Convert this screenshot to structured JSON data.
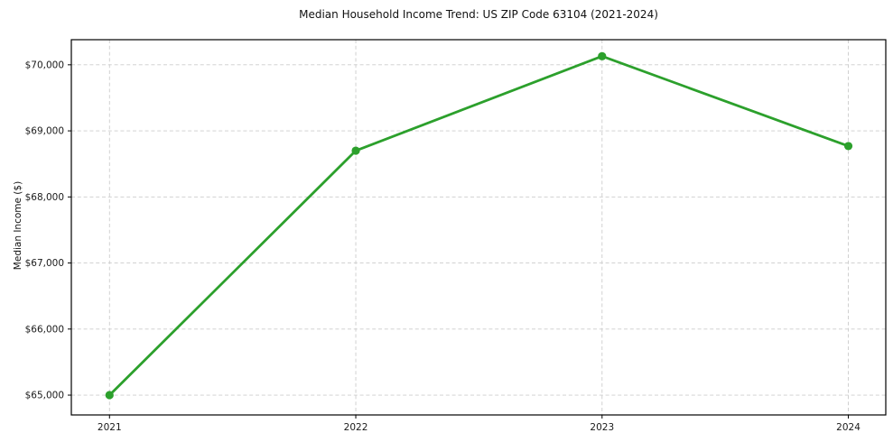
{
  "figure": {
    "title": "Median Household Income Trend: US ZIP Code 63104 (2021-2024)",
    "ylabel": "Median Income ($)"
  },
  "chart_data": {
    "type": "line",
    "title": "Median Household Income Trend: US ZIP Code 63104 (2021-2024)",
    "xlabel": "",
    "ylabel": "Median Income ($)",
    "x": [
      2021,
      2022,
      2023,
      2024
    ],
    "x_tick_labels": [
      "2021",
      "2022",
      "2023",
      "2024"
    ],
    "values": [
      65000,
      68700,
      70130,
      68770
    ],
    "y_ticks": [
      65000,
      66000,
      67000,
      68000,
      69000,
      70000
    ],
    "y_tick_labels": [
      "$65,000",
      "$66,000",
      "$67,000",
      "$68,000",
      "$69,000",
      "$70,000"
    ],
    "xlim": [
      2020.845,
      2024.152
    ],
    "ylim": [
      64700,
      70380
    ],
    "grid": "dashed-both-axes",
    "legend": false,
    "style": {
      "line_color": "#2ca02c",
      "marker": "circle",
      "marker_radius": 4.6,
      "line_width": 2.8,
      "grid_color": "#cccccc",
      "spine_color": "#000000",
      "text_color": "#1a1a1a",
      "background": "#ffffff"
    }
  }
}
